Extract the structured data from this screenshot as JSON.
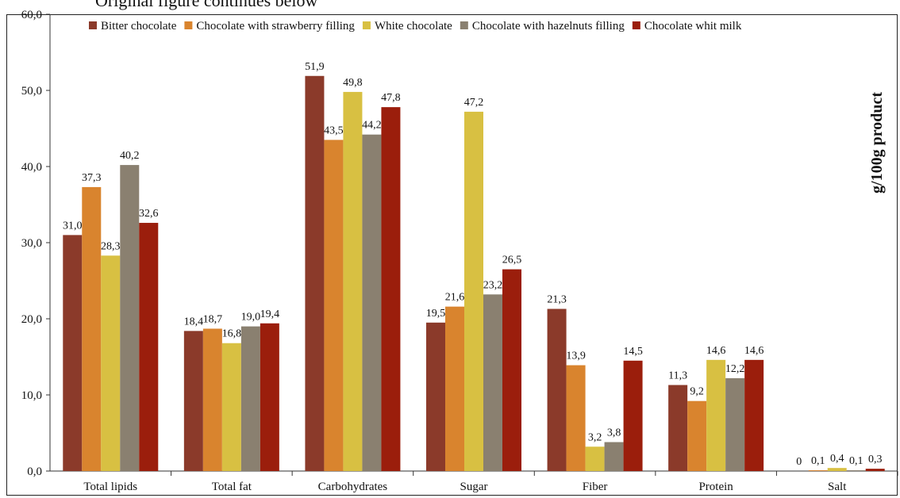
{
  "caption_fragment": "Original figure continues below",
  "chart_data": {
    "type": "bar",
    "ylabel": "g/100g product",
    "ylim": [
      0,
      60
    ],
    "yticks": [
      "0,0",
      "10,0",
      "20,0",
      "30,0",
      "40,0",
      "50,0",
      "60,0"
    ],
    "legend_position": "top",
    "grid": false,
    "categories": [
      "Total lipids",
      "Total fat",
      "Carbohydrates",
      "Sugar",
      "Fiber",
      "Protein",
      "Salt"
    ],
    "series": [
      {
        "name": "Bitter chocolate",
        "color": "#8B3A2A",
        "values": [
          31.0,
          18.4,
          51.9,
          19.5,
          21.3,
          11.3,
          0
        ],
        "labels": [
          "31,0",
          "18,4",
          "51,9",
          "19,5",
          "21,3",
          "11,3",
          "0"
        ]
      },
      {
        "name": "Chocolate with strawberry filling",
        "color": "#D9842E",
        "values": [
          37.3,
          18.7,
          43.5,
          21.6,
          13.9,
          9.2,
          0.1
        ],
        "labels": [
          "37,3",
          "18,7",
          "43,5",
          "21,6",
          "13,9",
          "9,2",
          "0,1"
        ]
      },
      {
        "name": "White chocolate",
        "color": "#D8C042",
        "values": [
          28.3,
          16.8,
          49.8,
          47.2,
          3.2,
          14.6,
          0.4
        ],
        "labels": [
          "28,3",
          "16,8",
          "49,8",
          "47,2",
          "3,2",
          "14,6",
          "0,4"
        ]
      },
      {
        "name": "Chocolate with hazelnuts filling",
        "color": "#8A8070",
        "values": [
          40.2,
          19.0,
          44.2,
          23.2,
          3.8,
          12.2,
          0.1
        ],
        "labels": [
          "40,2",
          "19,0",
          "44,2",
          "23,2",
          "3,8",
          "12,2",
          "0,1"
        ]
      },
      {
        "name": "Chocolate whit milk",
        "color": "#9B1E0C",
        "values": [
          32.6,
          19.4,
          47.8,
          26.5,
          14.5,
          14.6,
          0.3
        ],
        "labels": [
          "32,6",
          "19,4",
          "47,8",
          "26,5",
          "14,5",
          "14,6",
          "0,3"
        ]
      }
    ]
  }
}
